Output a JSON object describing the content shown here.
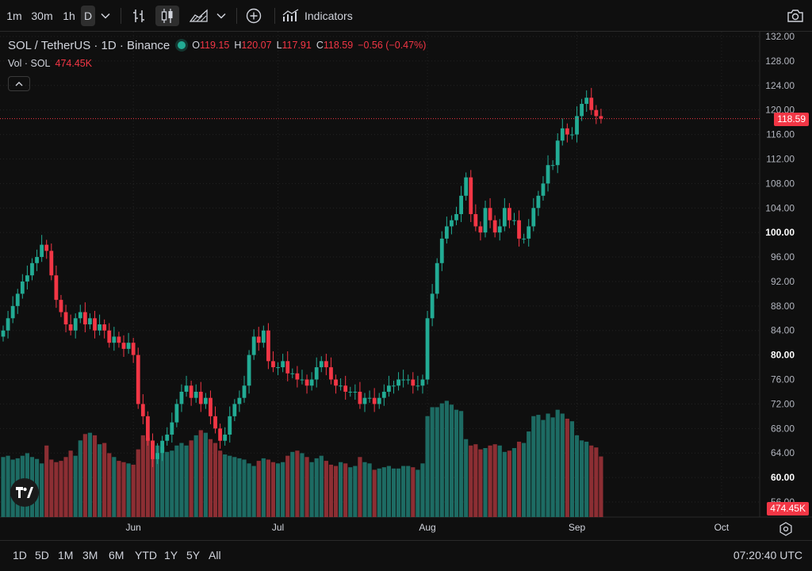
{
  "toolbar": {
    "intervals": [
      {
        "label": "1m",
        "active": false
      },
      {
        "label": "30m",
        "active": false
      },
      {
        "label": "1h",
        "active": false
      },
      {
        "label": "D",
        "active": true
      }
    ],
    "interval_menu_icon": "chevron-down-icon",
    "bar_style_icon": "bar-style-icon",
    "candles_icon": "candles-icon",
    "area_icon": "area-icon",
    "style_menu_icon": "chevron-down-icon",
    "add_icon": "plus-circle-icon",
    "indicators_label": "Indicators",
    "indicators_icon": "indicators-icon",
    "snapshot_icon": "camera-icon"
  },
  "legend": {
    "symbol": "SOL / TetherUS · 1D · Binance",
    "o_key": "O",
    "o_val": "119.15",
    "h_key": "H",
    "h_val": "120.07",
    "l_key": "L",
    "l_val": "117.91",
    "c_key": "C",
    "c_val": "118.59",
    "change": "−0.56 (−0.47%)",
    "vol_key": "Vol · SOL",
    "vol_val": "474.45K"
  },
  "price_tag": "118.59",
  "volume_tag": "474.45K",
  "colors": {
    "up": "#22ab94",
    "down": "#f23645",
    "up_vol": "#1d6b63",
    "down_vol": "#8c2e33",
    "bg": "#0f0f0f"
  },
  "bottom": {
    "ranges": [
      "1D",
      "5D",
      "1M",
      "3M",
      "6M",
      "YTD",
      "1Y",
      "5Y",
      "All"
    ],
    "clock": "07:20:40 UTC",
    "settings_icon": "gear-icon"
  },
  "chart_data": {
    "type": "candlestick",
    "title": "SOL / TetherUS · 1D · Binance",
    "y_ticks": [
      "132.00",
      "128.00",
      "124.00",
      "120.00",
      "116.00",
      "112.00",
      "108.00",
      "104.00",
      "100.00",
      "96.00",
      "92.00",
      "88.00",
      "84.00",
      "80.00",
      "76.00",
      "72.00",
      "68.00",
      "64.00",
      "60.00",
      "56.00"
    ],
    "y_tick_values": [
      132,
      128,
      124,
      120,
      116,
      112,
      108,
      104,
      100,
      96,
      92,
      88,
      84,
      80,
      76,
      72,
      68,
      64,
      60,
      56
    ],
    "bold_ticks": [
      100,
      80,
      60
    ],
    "ylim": [
      53,
      134
    ],
    "x_ticks": [
      {
        "label": "Jun",
        "index": 27
      },
      {
        "label": "Jul",
        "index": 57
      },
      {
        "label": "Aug",
        "index": 88
      },
      {
        "label": "Sep",
        "index": 119
      },
      {
        "label": "Oct",
        "index": 149
      }
    ],
    "close": [
      84,
      86,
      88,
      90,
      92,
      93,
      95,
      96,
      98,
      97,
      93,
      89,
      87,
      85,
      84,
      86,
      87,
      85,
      86,
      84,
      85,
      84,
      82,
      83,
      82,
      81,
      82,
      80,
      72,
      70,
      66,
      63,
      64,
      66,
      67,
      69,
      72,
      74,
      75,
      73,
      74,
      72,
      73,
      70,
      68,
      66,
      67,
      70,
      72,
      73,
      75,
      80,
      83,
      82,
      84,
      79,
      78,
      78,
      79,
      77,
      77,
      76,
      76,
      75,
      76,
      78,
      79,
      78,
      76,
      75,
      75,
      74,
      74,
      74,
      72,
      73,
      73,
      72,
      73,
      74,
      75,
      75,
      76,
      76,
      76,
      75,
      75,
      76,
      86,
      90,
      95,
      99,
      101,
      102,
      103,
      106,
      109,
      103,
      101,
      100,
      104,
      102,
      100,
      101,
      104,
      102,
      102,
      99,
      99,
      101,
      104,
      106,
      108,
      111,
      111,
      115,
      117,
      116,
      116,
      119,
      121,
      122,
      120,
      119,
      118.59
    ],
    "volume_k": [
      470,
      480,
      450,
      460,
      480,
      500,
      470,
      455,
      420,
      560,
      450,
      430,
      440,
      470,
      520,
      480,
      600,
      650,
      660,
      640,
      570,
      580,
      500,
      470,
      440,
      430,
      420,
      410,
      530,
      640,
      620,
      600,
      560,
      550,
      510,
      520,
      560,
      580,
      560,
      600,
      640,
      680,
      660,
      610,
      580,
      520,
      490,
      480,
      470,
      460,
      450,
      420,
      400,
      440,
      460,
      450,
      430,
      420,
      430,
      480,
      510,
      520,
      500,
      470,
      430,
      460,
      480,
      440,
      410,
      400,
      430,
      420,
      390,
      400,
      470,
      430,
      420,
      370,
      380,
      390,
      400,
      380,
      380,
      400,
      400,
      390,
      370,
      420,
      790,
      860,
      860,
      890,
      910,
      880,
      840,
      830,
      610,
      560,
      570,
      530,
      540,
      560,
      570,
      560,
      510,
      520,
      540,
      590,
      580,
      670,
      790,
      800,
      760,
      810,
      780,
      840,
      810,
      770,
      750,
      640,
      600,
      590,
      560,
      545,
      474.45
    ]
  }
}
